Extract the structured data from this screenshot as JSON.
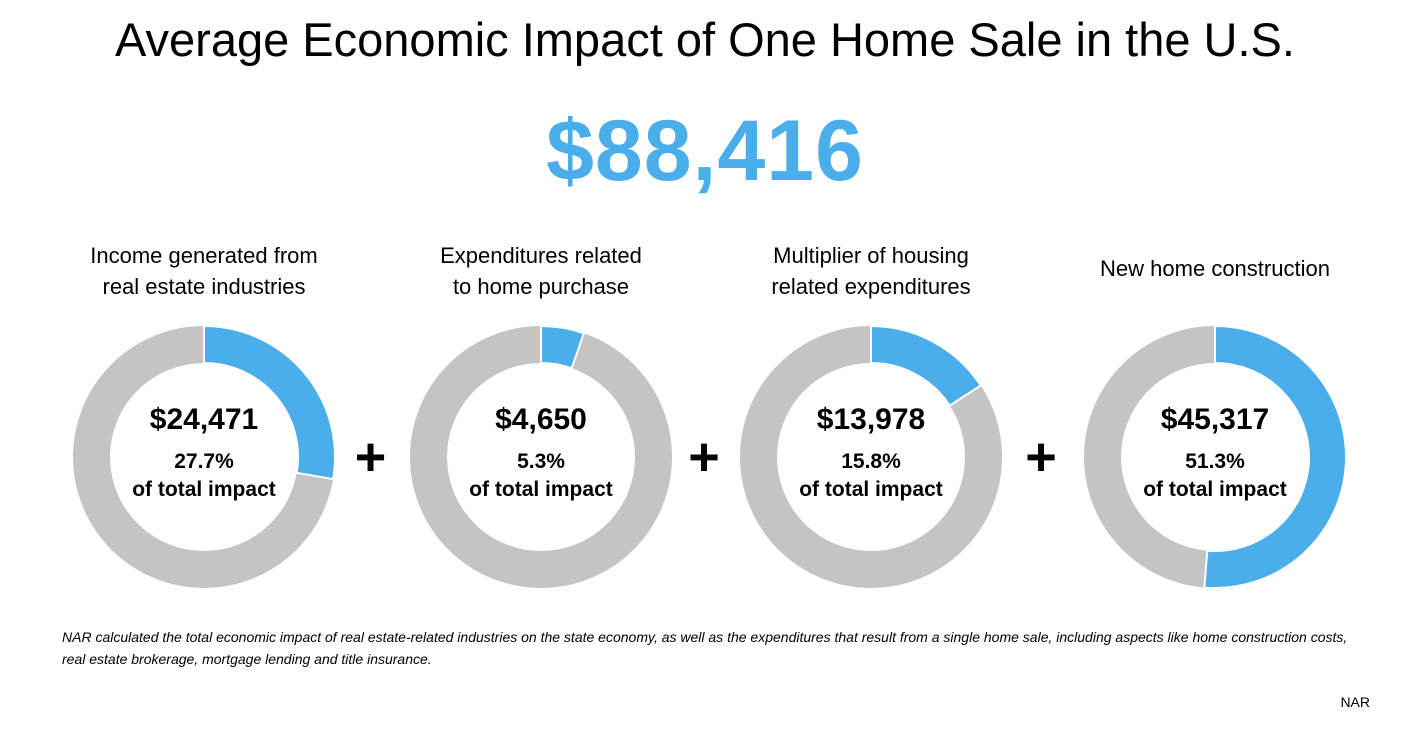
{
  "title": "Average Economic Impact of One Home Sale in the U.S.",
  "total": "$88,416",
  "operator": "+",
  "colors": {
    "highlight": "#4aaeea",
    "remainder": "#c4c4c4",
    "total": "#4aaeea"
  },
  "chart_data": {
    "type": "pie",
    "style": "donut",
    "title": "Average Economic Impact of One Home Sale in the U.S.",
    "slices": [
      {
        "label_lines": [
          "Income generated from",
          "real estate industries"
        ],
        "value": 24471,
        "value_text": "$24,471",
        "percent": 27.7,
        "percent_text": "27.7%",
        "suffix": "of total impact"
      },
      {
        "label_lines": [
          "Expenditures related",
          "to home purchase"
        ],
        "value": 4650,
        "value_text": "$4,650",
        "percent": 5.3,
        "percent_text": "5.3%",
        "suffix": "of total impact"
      },
      {
        "label_lines": [
          "Multiplier of housing",
          "related expenditures"
        ],
        "value": 13978,
        "value_text": "$13,978",
        "percent": 15.8,
        "percent_text": "15.8%",
        "suffix": "of total impact"
      },
      {
        "label_lines": [
          "New home construction"
        ],
        "value": 45317,
        "value_text": "$45,317",
        "percent": 51.3,
        "percent_text": "51.3%",
        "suffix": "of total impact"
      }
    ]
  },
  "footnote": "NAR calculated the total economic impact of real estate-related industries on the state economy, as well as the expenditures that result from a single home sale, including aspects like home construction costs, real estate brokerage, mortgage lending and title insurance.",
  "source": "NAR"
}
